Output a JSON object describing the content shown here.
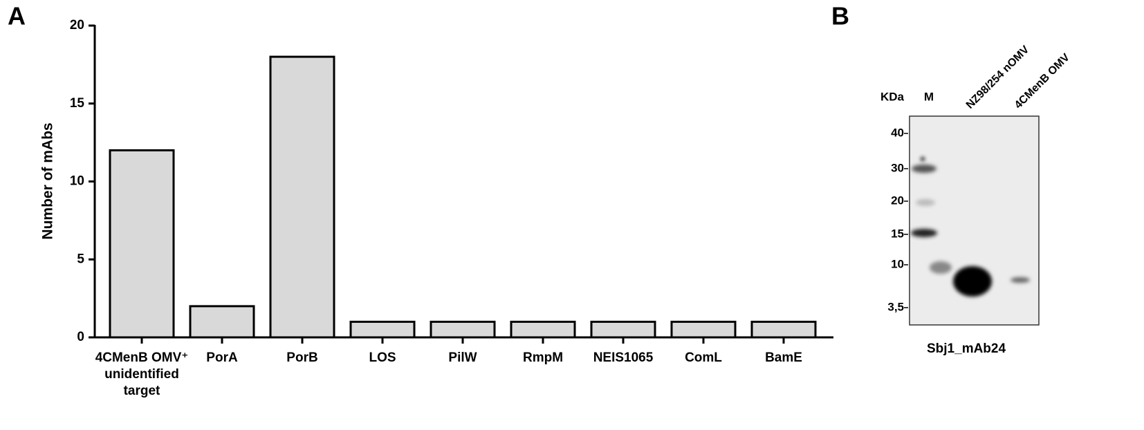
{
  "chart_data": {
    "type": "bar",
    "panel": "A",
    "y_label": "Number of mAbs",
    "categories": [
      "4CMenB OMV⁺ unidentified target",
      "PorA",
      "PorB",
      "LOS",
      "PilW",
      "RmpM",
      "NEIS1065",
      "ComL",
      "BamE"
    ],
    "values": [
      12,
      2,
      18,
      1,
      1,
      1,
      1,
      1,
      1
    ],
    "color": "#d9d9d9",
    "ylim": [
      0,
      20
    ],
    "yticks": [
      0,
      5,
      10,
      15,
      20
    ],
    "grid": false
  },
  "blot": {
    "panel": "B",
    "unit": "KDa",
    "marker_lane": "M",
    "lanes": [
      "NZ98/254 nOMV",
      "4CMenB OMV"
    ],
    "markers": [
      "40",
      "30",
      "20",
      "15",
      "10",
      "3,5"
    ],
    "caption": "Sbj1_mAb24"
  }
}
